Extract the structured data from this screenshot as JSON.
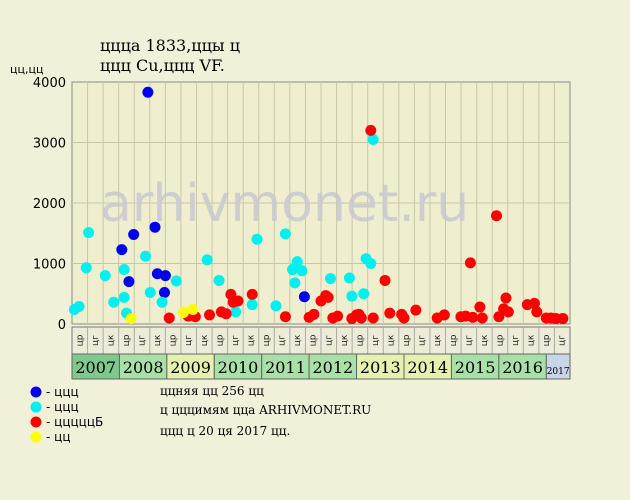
{
  "chart_data": {
    "type": "scatter",
    "title_line1": "ццца 1833,ццы ц",
    "title_line2": "ццц Cu,ццц VF.",
    "ylabel": "цц,цц",
    "ylim": [
      0,
      4000
    ],
    "yticks": [
      0,
      1000,
      2000,
      3000,
      4000
    ],
    "grid": true,
    "watermark": "arhivmonet.ru",
    "years": [
      "2007",
      "2008",
      "2009",
      "2010",
      "2011",
      "2012",
      "2013",
      "2014",
      "2015",
      "2016",
      "2017"
    ],
    "year_colors": [
      "#7fc98f",
      "#a8e0a8",
      "#e6f0b0",
      "#a8e0a8",
      "#a8e0a8",
      "#a8e0a8",
      "#e6f0b0",
      "#e6f0b0",
      "#a8e0a8",
      "#a8e0a8",
      "#c8d4e8"
    ],
    "quarter_labels": [
      "цр",
      "цг",
      "цк"
    ],
    "series": [
      {
        "name": "- ццц",
        "color": "#0000ee",
        "points": [
          [
            2008.05,
            1230
          ],
          [
            2008.2,
            700
          ],
          [
            2008.3,
            1480
          ],
          [
            2008.6,
            3830
          ],
          [
            2008.75,
            1600
          ],
          [
            2008.8,
            830
          ],
          [
            2008.95,
            520
          ],
          [
            2008.97,
            800
          ],
          [
            2011.9,
            450
          ]
        ]
      },
      {
        "name": "- ццц",
        "color": "#00f0f0",
        "points": [
          [
            2007.05,
            240
          ],
          [
            2007.15,
            290
          ],
          [
            2007.3,
            930
          ],
          [
            2007.35,
            1510
          ],
          [
            2007.7,
            800
          ],
          [
            2007.88,
            360
          ],
          [
            2008.1,
            900
          ],
          [
            2008.1,
            440
          ],
          [
            2008.15,
            180
          ],
          [
            2008.55,
            1120
          ],
          [
            2008.65,
            520
          ],
          [
            2008.9,
            360
          ],
          [
            2009.2,
            710
          ],
          [
            2009.85,
            1060
          ],
          [
            2010.1,
            720
          ],
          [
            2010.4,
            370
          ],
          [
            2010.45,
            200
          ],
          [
            2010.8,
            320
          ],
          [
            2010.9,
            1400
          ],
          [
            2011.3,
            300
          ],
          [
            2011.5,
            1490
          ],
          [
            2011.65,
            900
          ],
          [
            2011.7,
            680
          ],
          [
            2011.75,
            1030
          ],
          [
            2011.85,
            880
          ],
          [
            2012.45,
            750
          ],
          [
            2012.85,
            760
          ],
          [
            2012.9,
            460
          ],
          [
            2013.15,
            500
          ],
          [
            2013.2,
            1080
          ],
          [
            2013.3,
            1000
          ],
          [
            2013.35,
            3050
          ]
        ]
      },
      {
        "name": "- цццццБ",
        "color": "#ff0000",
        "points": [
          [
            2009.05,
            100
          ],
          [
            2009.45,
            130
          ],
          [
            2009.6,
            120
          ],
          [
            2009.9,
            150
          ],
          [
            2010.15,
            200
          ],
          [
            2010.25,
            170
          ],
          [
            2010.35,
            490
          ],
          [
            2010.4,
            360
          ],
          [
            2010.5,
            380
          ],
          [
            2010.8,
            490
          ],
          [
            2011.5,
            120
          ],
          [
            2012.0,
            110
          ],
          [
            2012.1,
            160
          ],
          [
            2012.25,
            380
          ],
          [
            2012.35,
            470
          ],
          [
            2012.4,
            440
          ],
          [
            2012.5,
            100
          ],
          [
            2012.6,
            130
          ],
          [
            2012.9,
            90
          ],
          [
            2013.0,
            150
          ],
          [
            2013.05,
            160
          ],
          [
            2013.1,
            100
          ],
          [
            2013.3,
            3200
          ],
          [
            2013.35,
            100
          ],
          [
            2013.6,
            720
          ],
          [
            2013.7,
            180
          ],
          [
            2013.95,
            160
          ],
          [
            2014.0,
            100
          ],
          [
            2014.25,
            230
          ],
          [
            2014.7,
            100
          ],
          [
            2014.85,
            150
          ],
          [
            2015.2,
            120
          ],
          [
            2015.3,
            130
          ],
          [
            2015.4,
            1010
          ],
          [
            2015.45,
            110
          ],
          [
            2015.6,
            280
          ],
          [
            2015.65,
            100
          ],
          [
            2015.95,
            1790
          ],
          [
            2016.0,
            120
          ],
          [
            2016.1,
            250
          ],
          [
            2016.15,
            430
          ],
          [
            2016.2,
            200
          ],
          [
            2016.6,
            320
          ],
          [
            2016.75,
            340
          ],
          [
            2016.8,
            200
          ],
          [
            2017.0,
            100
          ],
          [
            2017.1,
            100
          ],
          [
            2017.2,
            90
          ],
          [
            2017.35,
            90
          ]
        ]
      },
      {
        "name": "- цц",
        "color": "#ffff00",
        "points": [
          [
            2008.25,
            90
          ],
          [
            2009.35,
            190
          ],
          [
            2009.55,
            240
          ]
        ]
      }
    ]
  },
  "notes": {
    "line1": "ццняя цц 256 цц",
    "line2": "ц цццимям цца ARHIVMONET.RU",
    "line3": "ццц ц 20 ця 2017 цц."
  }
}
